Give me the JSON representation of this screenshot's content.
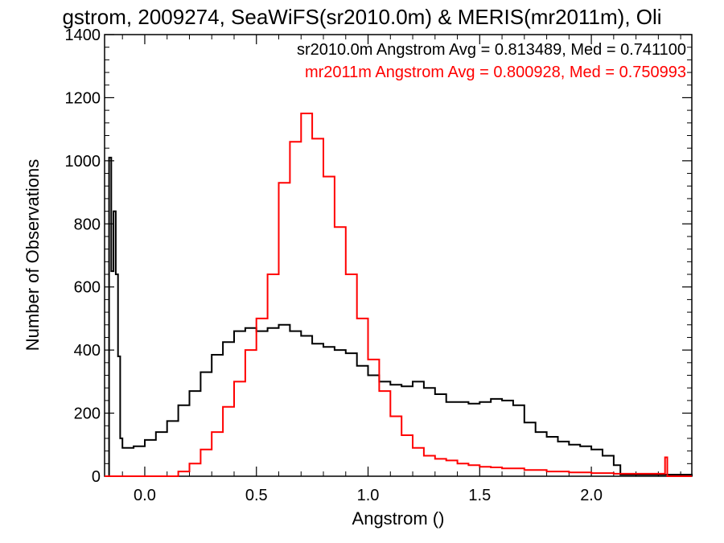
{
  "chart_data": {
    "type": "histogram",
    "title": "gstrom, 2009274, SeaWiFS(sr2010.0m) & MERIS(mr2011m), Oli",
    "xlabel": "Angstrom ()",
    "ylabel": "Number of Observations",
    "xlim": [
      -0.18,
      2.45
    ],
    "ylim": [
      0,
      1400
    ],
    "x_ticks": [
      0.0,
      0.5,
      1.0,
      1.5,
      2.0
    ],
    "x_tick_labels": [
      "0.0",
      "0.5",
      "1.0",
      "1.5",
      "2.0"
    ],
    "y_ticks": [
      0,
      200,
      400,
      600,
      800,
      1000,
      1200,
      1400
    ],
    "y_tick_labels": [
      "0",
      "200",
      "400",
      "600",
      "800",
      "1000",
      "1200",
      "1400"
    ],
    "annotations": [
      {
        "text": "sr2010.0m Angstrom Avg = 0.813489, Med = 0.741100",
        "color": "#000000"
      },
      {
        "text": "mr2011m Angstrom Avg = 0.800928, Med = 0.750993",
        "color": "#ff0000"
      }
    ],
    "series": [
      {
        "name": "sr2010.0m",
        "color": "#000000",
        "points": [
          [
            -0.17,
            0
          ],
          [
            -0.16,
            1010
          ],
          [
            -0.15,
            650
          ],
          [
            -0.14,
            840
          ],
          [
            -0.13,
            640
          ],
          [
            -0.12,
            380
          ],
          [
            -0.11,
            120
          ],
          [
            -0.1,
            90
          ],
          [
            -0.05,
            95
          ],
          [
            0.0,
            115
          ],
          [
            0.05,
            140
          ],
          [
            0.1,
            175
          ],
          [
            0.15,
            225
          ],
          [
            0.2,
            270
          ],
          [
            0.25,
            330
          ],
          [
            0.3,
            385
          ],
          [
            0.35,
            425
          ],
          [
            0.4,
            460
          ],
          [
            0.45,
            470
          ],
          [
            0.5,
            460
          ],
          [
            0.55,
            470
          ],
          [
            0.6,
            480
          ],
          [
            0.65,
            460
          ],
          [
            0.7,
            445
          ],
          [
            0.75,
            420
          ],
          [
            0.8,
            410
          ],
          [
            0.85,
            400
          ],
          [
            0.9,
            390
          ],
          [
            0.95,
            350
          ],
          [
            1.0,
            320
          ],
          [
            1.05,
            300
          ],
          [
            1.1,
            290
          ],
          [
            1.15,
            285
          ],
          [
            1.2,
            300
          ],
          [
            1.25,
            280
          ],
          [
            1.3,
            260
          ],
          [
            1.35,
            235
          ],
          [
            1.4,
            235
          ],
          [
            1.45,
            230
          ],
          [
            1.5,
            235
          ],
          [
            1.55,
            245
          ],
          [
            1.6,
            240
          ],
          [
            1.65,
            225
          ],
          [
            1.7,
            170
          ],
          [
            1.75,
            140
          ],
          [
            1.8,
            125
          ],
          [
            1.85,
            110
          ],
          [
            1.9,
            100
          ],
          [
            1.95,
            95
          ],
          [
            2.0,
            85
          ],
          [
            2.05,
            65
          ],
          [
            2.1,
            35
          ],
          [
            2.13,
            5
          ],
          [
            2.45,
            0
          ]
        ]
      },
      {
        "name": "mr2011m",
        "color": "#ff0000",
        "points": [
          [
            -0.18,
            0
          ],
          [
            0.1,
            0
          ],
          [
            0.15,
            15
          ],
          [
            0.2,
            40
          ],
          [
            0.25,
            85
          ],
          [
            0.3,
            140
          ],
          [
            0.35,
            220
          ],
          [
            0.4,
            300
          ],
          [
            0.45,
            400
          ],
          [
            0.5,
            500
          ],
          [
            0.55,
            640
          ],
          [
            0.6,
            930
          ],
          [
            0.65,
            1060
          ],
          [
            0.7,
            1150
          ],
          [
            0.75,
            1070
          ],
          [
            0.8,
            950
          ],
          [
            0.85,
            790
          ],
          [
            0.9,
            640
          ],
          [
            0.95,
            500
          ],
          [
            1.0,
            370
          ],
          [
            1.05,
            270
          ],
          [
            1.1,
            190
          ],
          [
            1.15,
            130
          ],
          [
            1.2,
            90
          ],
          [
            1.25,
            65
          ],
          [
            1.3,
            55
          ],
          [
            1.35,
            50
          ],
          [
            1.4,
            40
          ],
          [
            1.45,
            35
          ],
          [
            1.5,
            30
          ],
          [
            1.55,
            28
          ],
          [
            1.6,
            25
          ],
          [
            1.7,
            20
          ],
          [
            1.8,
            15
          ],
          [
            1.9,
            12
          ],
          [
            2.0,
            10
          ],
          [
            2.1,
            8
          ],
          [
            2.2,
            8
          ],
          [
            2.3,
            8
          ],
          [
            2.33,
            60
          ],
          [
            2.34,
            0
          ],
          [
            2.45,
            0
          ]
        ]
      }
    ]
  }
}
